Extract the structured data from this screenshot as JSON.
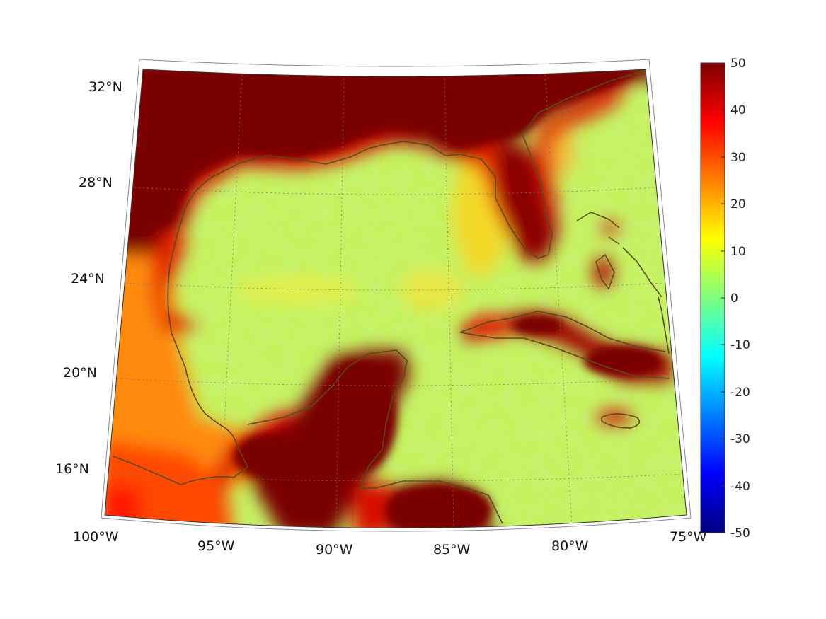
{
  "map": {
    "projection": "conic (curved meridian/parallel frame)",
    "lon_range": [
      -100,
      -75
    ],
    "lat_range": [
      14,
      33
    ],
    "graticule": "dotted",
    "coastline_color": "#5a4a1a",
    "colormap": "jet",
    "lat_labels": [
      "32°N",
      "28°N",
      "24°N",
      "20°N",
      "16°N"
    ],
    "lon_labels": [
      "100°W",
      "95°W",
      "90°W",
      "85°W",
      "80°W",
      "75°W"
    ]
  },
  "colorbar": {
    "min": -50,
    "max": 50,
    "ticks": [
      "50",
      "40",
      "30",
      "20",
      "10",
      "0",
      "-10",
      "-20",
      "-30",
      "-40",
      "-50"
    ]
  },
  "field_description_colors": {
    "open_water": "#c0f060",
    "coastal_high": "#7a0000",
    "land_mid": "#ff7a10"
  }
}
